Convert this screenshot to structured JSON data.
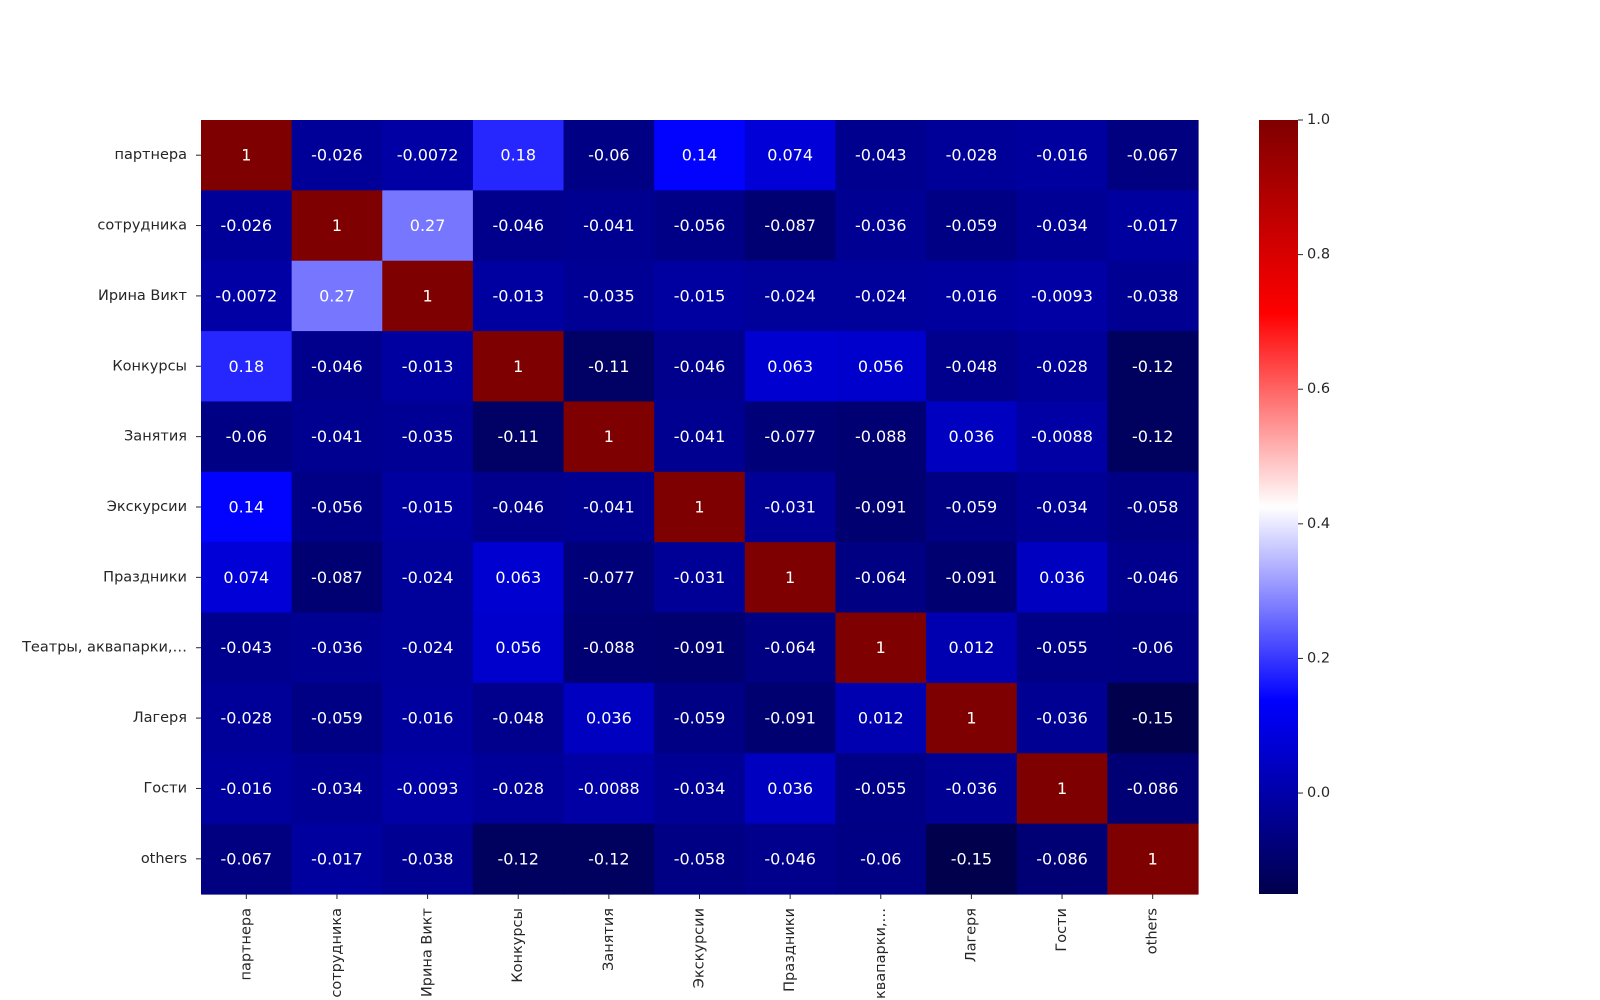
{
  "chart_data": {
    "type": "heatmap",
    "title": "",
    "xlabel": "",
    "ylabel": "",
    "row_labels": [
      "партнера",
      "сотрудника",
      "Ирина Викт",
      "Конкурсы",
      "Занятия",
      "Экскурсии",
      "Праздники",
      "Театры, аквапарки,…",
      "Лагеря",
      "Гости",
      "others"
    ],
    "col_labels": [
      "партнера",
      "сотрудника",
      "Ирина Викт",
      "Конкурсы",
      "Занятия",
      "Экскурсии",
      "Праздники",
      "аквапарки,…",
      "Лагеря",
      "Гости",
      "others"
    ],
    "values": [
      [
        1,
        -0.026,
        -0.0072,
        0.18,
        -0.06,
        0.14,
        0.074,
        -0.043,
        -0.028,
        -0.016,
        -0.067
      ],
      [
        -0.026,
        1,
        0.27,
        -0.046,
        -0.041,
        -0.056,
        -0.087,
        -0.036,
        -0.059,
        -0.034,
        -0.017
      ],
      [
        -0.0072,
        0.27,
        1,
        -0.013,
        -0.035,
        -0.015,
        -0.024,
        -0.024,
        -0.016,
        -0.0093,
        -0.038
      ],
      [
        0.18,
        -0.046,
        -0.013,
        1,
        -0.11,
        -0.046,
        0.063,
        0.056,
        -0.048,
        -0.028,
        -0.12
      ],
      [
        -0.06,
        -0.041,
        -0.035,
        -0.11,
        1,
        -0.041,
        -0.077,
        -0.088,
        0.036,
        -0.0088,
        -0.12
      ],
      [
        0.14,
        -0.056,
        -0.015,
        -0.046,
        -0.041,
        1,
        -0.031,
        -0.091,
        -0.059,
        -0.034,
        -0.058
      ],
      [
        0.074,
        -0.087,
        -0.024,
        0.063,
        -0.077,
        -0.031,
        1,
        -0.064,
        -0.091,
        0.036,
        -0.046
      ],
      [
        -0.043,
        -0.036,
        -0.024,
        0.056,
        -0.088,
        -0.091,
        -0.064,
        1,
        0.012,
        -0.055,
        -0.06
      ],
      [
        -0.028,
        -0.059,
        -0.016,
        -0.048,
        0.036,
        -0.059,
        -0.091,
        0.012,
        1,
        -0.036,
        -0.15
      ],
      [
        -0.016,
        -0.034,
        -0.0093,
        -0.028,
        -0.0088,
        -0.034,
        0.036,
        -0.055,
        -0.036,
        1,
        -0.086
      ],
      [
        -0.067,
        -0.017,
        -0.038,
        -0.12,
        -0.12,
        -0.058,
        -0.046,
        -0.06,
        -0.15,
        -0.086,
        1
      ]
    ],
    "value_labels": [
      [
        "1",
        "-0.026",
        "-0.0072",
        "0.18",
        "-0.06",
        "0.14",
        "0.074",
        "-0.043",
        "-0.028",
        "-0.016",
        "-0.067"
      ],
      [
        "-0.026",
        "1",
        "0.27",
        "-0.046",
        "-0.041",
        "-0.056",
        "-0.087",
        "-0.036",
        "-0.059",
        "-0.034",
        "-0.017"
      ],
      [
        "-0.0072",
        "0.27",
        "1",
        "-0.013",
        "-0.035",
        "-0.015",
        "-0.024",
        "-0.024",
        "-0.016",
        "-0.0093",
        "-0.038"
      ],
      [
        "0.18",
        "-0.046",
        "-0.013",
        "1",
        "-0.11",
        "-0.046",
        "0.063",
        "0.056",
        "-0.048",
        "-0.028",
        "-0.12"
      ],
      [
        "-0.06",
        "-0.041",
        "-0.035",
        "-0.11",
        "1",
        "-0.041",
        "-0.077",
        "-0.088",
        "0.036",
        "-0.0088",
        "-0.12"
      ],
      [
        "0.14",
        "-0.056",
        "-0.015",
        "-0.046",
        "-0.041",
        "1",
        "-0.031",
        "-0.091",
        "-0.059",
        "-0.034",
        "-0.058"
      ],
      [
        "0.074",
        "-0.087",
        "-0.024",
        "0.063",
        "-0.077",
        "-0.031",
        "1",
        "-0.064",
        "-0.091",
        "0.036",
        "-0.046"
      ],
      [
        "-0.043",
        "-0.036",
        "-0.024",
        "0.056",
        "-0.088",
        "-0.091",
        "-0.064",
        "1",
        "0.012",
        "-0.055",
        "-0.06"
      ],
      [
        "-0.028",
        "-0.059",
        "-0.016",
        "-0.048",
        "0.036",
        "-0.059",
        "-0.091",
        "0.012",
        "1",
        "-0.036",
        "-0.15"
      ],
      [
        "-0.016",
        "-0.034",
        "-0.0093",
        "-0.028",
        "-0.0088",
        "-0.034",
        "0.036",
        "-0.055",
        "-0.036",
        "1",
        "-0.086"
      ],
      [
        "-0.067",
        "-0.017",
        "-0.038",
        "-0.12",
        "-0.12",
        "-0.058",
        "-0.046",
        "-0.06",
        "-0.15",
        "-0.086",
        "1"
      ]
    ],
    "colorbar": {
      "range": [
        -0.15,
        1.0
      ],
      "ticks": [
        0.0,
        0.2,
        0.4,
        0.6,
        0.8,
        1.0
      ],
      "tick_labels": [
        "0.0",
        "0.2",
        "0.4",
        "0.6",
        "0.8",
        "1.0"
      ],
      "colormap": "seismic",
      "colors": [
        "#00004c",
        "#0000ff",
        "#ffffff",
        "#ff0000",
        "#7f0000"
      ],
      "placement": "right"
    },
    "grid": false,
    "annotation_color": "#ffffff"
  }
}
